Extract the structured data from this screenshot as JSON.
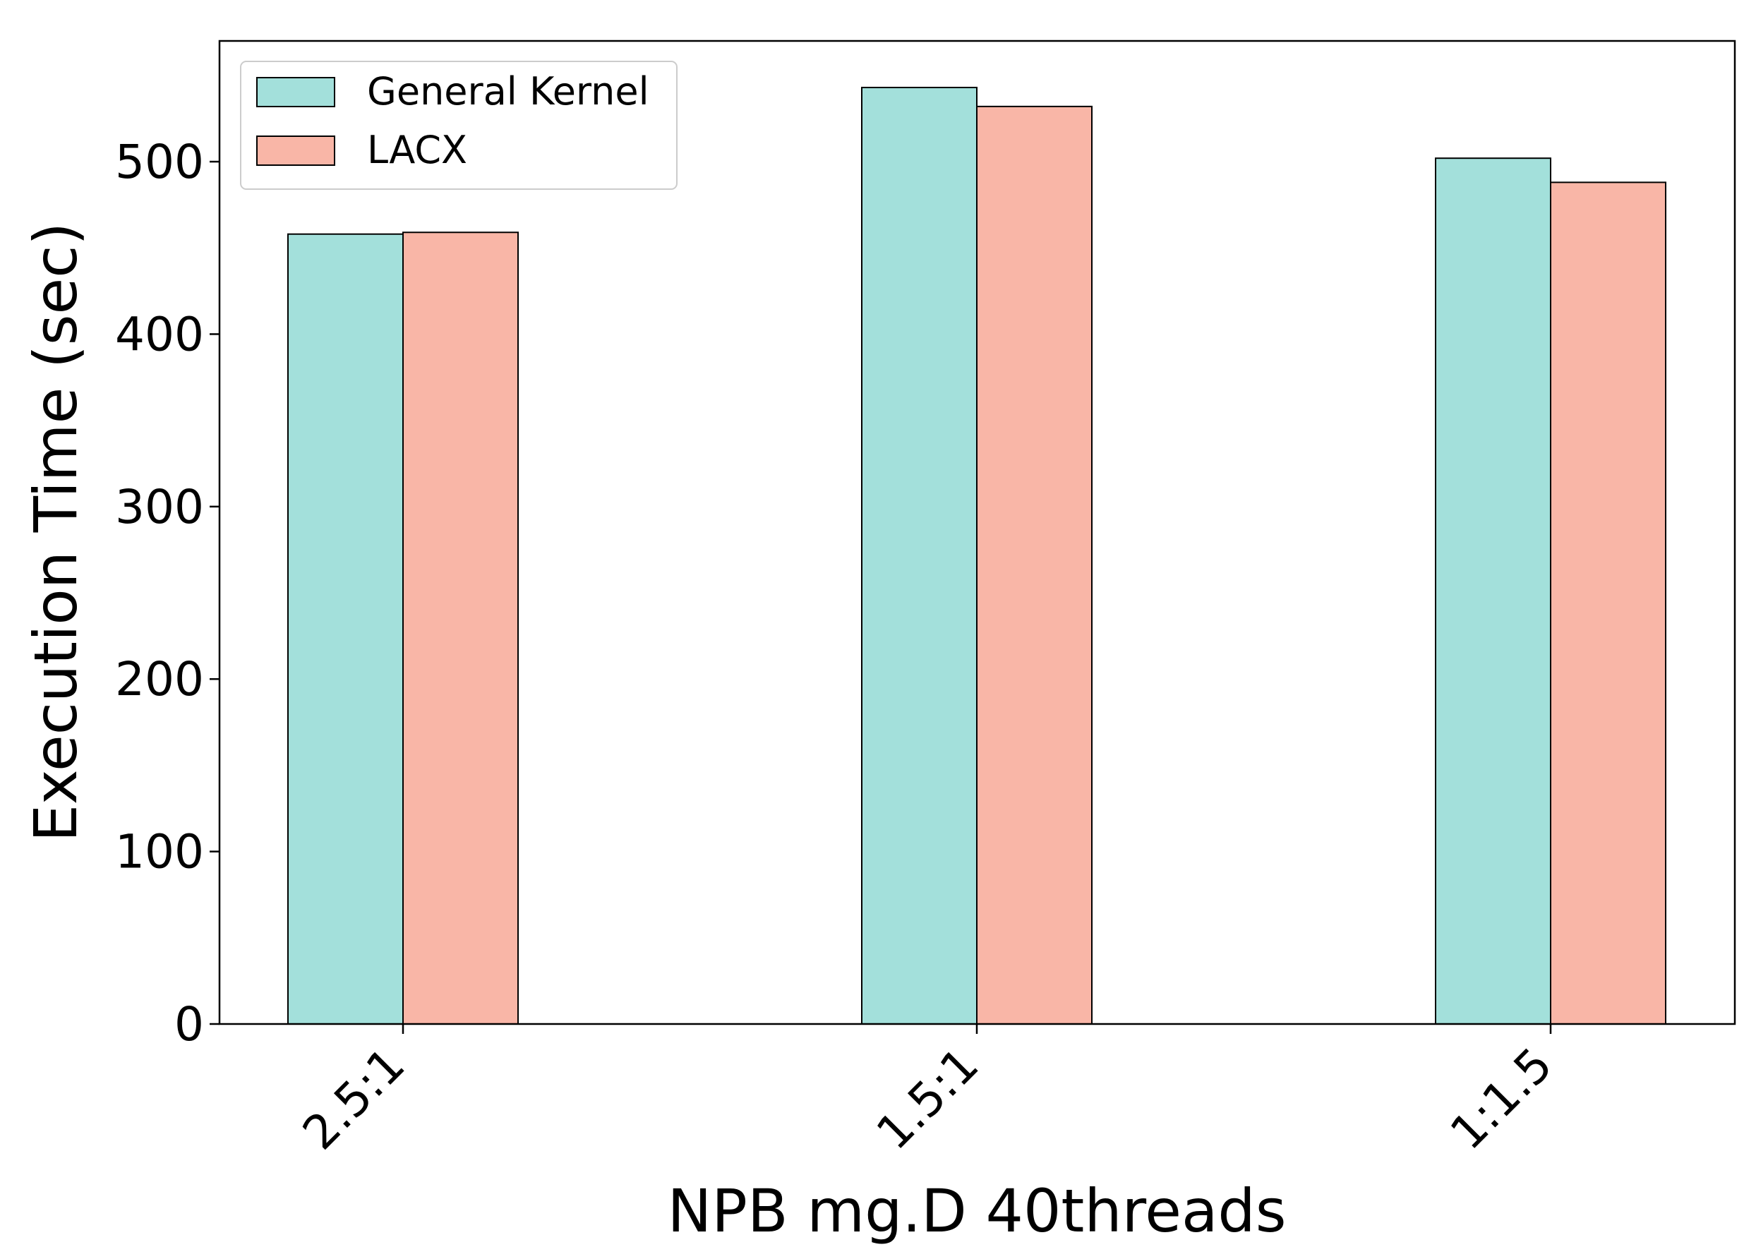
{
  "chart_data": {
    "type": "bar",
    "xlabel": "NPB mg.D 40threads",
    "ylabel": "Execution Time (sec)",
    "categories": [
      "2.5:1",
      "1.5:1",
      "1:1.5"
    ],
    "series": [
      {
        "name": "General Kernel",
        "color": "#a3e0db",
        "values": [
          458,
          543,
          502
        ]
      },
      {
        "name": "LACX",
        "color": "#f9b6a7",
        "values": [
          459,
          532,
          488
        ]
      }
    ],
    "ylim": [
      0,
      570
    ],
    "yticks": [
      0,
      100,
      200,
      300,
      400,
      500
    ],
    "legend_position": "top-left",
    "grid": false
  }
}
